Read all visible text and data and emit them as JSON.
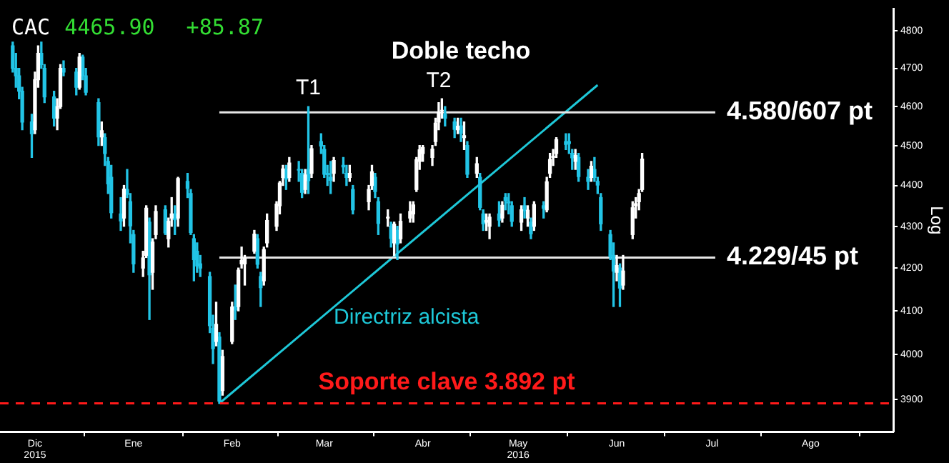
{
  "chart_data": {
    "type": "candlestick",
    "title": "Doble techo",
    "ylabel": "Log",
    "log": "y",
    "xlim": [
      "2015-12-04",
      "2016-09-10"
    ],
    "xticks": [
      {
        "value": "2015-12-15",
        "label": "Dic\n2015"
      },
      {
        "value": "2016-01-15",
        "label": "Ene"
      },
      {
        "value": "2016-02-15",
        "label": "Feb"
      },
      {
        "value": "2016-03-15",
        "label": "Mar"
      },
      {
        "value": "2016-04-15",
        "label": "Abr"
      },
      {
        "value": "2016-05-15",
        "label": "May\n2016"
      },
      {
        "value": "2016-06-15",
        "label": "Jun"
      },
      {
        "value": "2016-07-15",
        "label": "Jul"
      },
      {
        "value": "2016-08-15",
        "label": "Ago"
      }
    ],
    "ylim": [
      3830,
      4860
    ],
    "yticks": [
      3900,
      4000,
      4100,
      4200,
      4300,
      4400,
      4500,
      4600,
      4700,
      4800
    ],
    "series": [
      {
        "color": "#ffffff",
        "x": [
          "2015-12-15",
          "2015-12-16",
          "2015-12-22",
          "2015-12-23",
          "2015-12-29",
          "2016-01-05",
          "2016-01-12",
          "2016-01-18",
          "2016-01-19",
          "2016-01-21",
          "2016-01-22",
          "2016-01-26",
          "2016-01-27",
          "2016-01-29",
          "2016-02-10",
          "2016-02-12",
          "2016-02-15",
          "2016-02-17",
          "2016-02-18",
          "2016-02-19",
          "2016-02-22",
          "2016-02-25",
          "2016-02-26",
          "2016-02-29",
          "2016-03-01",
          "2016-03-02",
          "2016-03-04",
          "2016-03-09",
          "2016-03-11",
          "2016-03-18",
          "2016-03-23",
          "2016-03-29",
          "2016-03-30",
          "2016-04-04",
          "2016-04-06",
          "2016-04-08",
          "2016-04-11",
          "2016-04-12",
          "2016-04-13",
          "2016-04-14",
          "2016-04-15",
          "2016-04-18",
          "2016-04-19",
          "2016-04-20",
          "2016-04-21",
          "2016-04-26",
          "2016-04-28",
          "2016-05-02",
          "2016-05-05",
          "2016-05-06",
          "2016-05-10",
          "2016-05-16",
          "2016-05-18",
          "2016-05-20",
          "2016-05-24",
          "2016-05-25",
          "2016-05-26",
          "2016-05-27",
          "2016-06-02",
          "2016-06-07",
          "2016-06-15",
          "2016-06-17",
          "2016-06-20",
          "2016-06-21",
          "2016-06-22",
          "2016-06-23"
        ],
        "ohlc": [
          [
            4540,
            4690,
            4530,
            4670
          ],
          [
            4670,
            4760,
            4650,
            4740
          ],
          [
            4570,
            4620,
            4540,
            4600
          ],
          [
            4600,
            4710,
            4595,
            4700
          ],
          [
            4650,
            4740,
            4645,
            4730
          ],
          [
            4522,
            4560,
            4500,
            4538
          ],
          [
            4320,
            4400,
            4300,
            4391
          ],
          [
            4200,
            4240,
            4180,
            4224
          ],
          [
            4230,
            4350,
            4225,
            4344
          ],
          [
            4190,
            4270,
            4150,
            4262
          ],
          [
            4280,
            4350,
            4270,
            4336
          ],
          [
            4270,
            4320,
            4250,
            4312
          ],
          [
            4320,
            4370,
            4300,
            4330
          ],
          [
            4320,
            4420,
            4300,
            4417
          ],
          [
            4030,
            4120,
            4020,
            4069
          ],
          [
            3920,
            4010,
            3910,
            3996
          ],
          [
            4030,
            4120,
            4025,
            4109
          ],
          [
            4110,
            4200,
            4100,
            4195
          ],
          [
            4210,
            4250,
            4200,
            4218
          ],
          [
            4210,
            4230,
            4160,
            4223
          ],
          [
            4240,
            4290,
            4235,
            4281
          ],
          [
            4170,
            4250,
            4160,
            4244
          ],
          [
            4260,
            4330,
            4250,
            4314
          ],
          [
            4300,
            4360,
            4290,
            4354
          ],
          [
            4350,
            4410,
            4330,
            4406
          ],
          [
            4420,
            4450,
            4400,
            4441
          ],
          [
            4420,
            4470,
            4410,
            4456
          ],
          [
            4390,
            4440,
            4380,
            4426
          ],
          [
            4430,
            4500,
            4420,
            4492
          ],
          [
            4430,
            4470,
            4410,
            4462
          ],
          [
            4420,
            4450,
            4410,
            4430
          ],
          [
            4360,
            4400,
            4340,
            4390
          ],
          [
            4400,
            4450,
            4390,
            4434
          ],
          [
            4320,
            4340,
            4300,
            4322
          ],
          [
            4260,
            4310,
            4230,
            4305
          ],
          [
            4270,
            4330,
            4260,
            4312
          ],
          [
            4320,
            4360,
            4310,
            4336
          ],
          [
            4330,
            4360,
            4310,
            4352
          ],
          [
            4390,
            4470,
            4385,
            4464
          ],
          [
            4460,
            4500,
            4440,
            4489
          ],
          [
            4480,
            4500,
            4460,
            4495
          ],
          [
            4470,
            4500,
            4450,
            4491
          ],
          [
            4510,
            4570,
            4500,
            4557
          ],
          [
            4560,
            4610,
            4540,
            4585
          ],
          [
            4590,
            4620,
            4570,
            4590
          ],
          [
            4540,
            4570,
            4530,
            4549
          ],
          [
            4520,
            4560,
            4490,
            4525
          ],
          [
            4430,
            4470,
            4420,
            4454
          ],
          [
            4310,
            4330,
            4290,
            4314
          ],
          [
            4300,
            4330,
            4270,
            4322
          ],
          [
            4320,
            4360,
            4310,
            4351
          ],
          [
            4310,
            4350,
            4290,
            4340
          ],
          [
            4320,
            4350,
            4300,
            4339
          ],
          [
            4300,
            4360,
            4290,
            4353
          ],
          [
            4340,
            4420,
            4335,
            4409
          ],
          [
            4430,
            4480,
            4420,
            4465
          ],
          [
            4470,
            4490,
            4450,
            4473
          ],
          [
            4480,
            4520,
            4470,
            4515
          ],
          [
            4460,
            4490,
            4440,
            4475
          ],
          [
            4420,
            4460,
            4410,
            4448
          ],
          [
            4190,
            4230,
            4170,
            4206
          ],
          [
            4160,
            4230,
            4150,
            4193
          ],
          [
            4280,
            4360,
            4270,
            4345
          ],
          [
            4350,
            4370,
            4320,
            4355
          ],
          [
            4360,
            4390,
            4340,
            4380
          ],
          [
            4390,
            4480,
            4385,
            4466
          ]
        ]
      },
      {
        "color": "#22c4e6",
        "x": [
          "2015-12-08",
          "2015-12-09",
          "2015-12-10",
          "2015-12-11",
          "2015-12-14",
          "2015-12-17",
          "2015-12-18",
          "2015-12-21",
          "2015-12-24",
          "2015-12-28",
          "2015-12-30",
          "2015-12-31",
          "2016-01-04",
          "2016-01-06",
          "2016-01-07",
          "2016-01-08",
          "2016-01-11",
          "2016-01-13",
          "2016-01-14",
          "2016-01-15",
          "2016-01-20",
          "2016-01-25",
          "2016-01-28",
          "2016-02-01",
          "2016-02-02",
          "2016-02-03",
          "2016-02-04",
          "2016-02-05",
          "2016-02-08",
          "2016-02-09",
          "2016-02-11",
          "2016-02-16",
          "2016-02-23",
          "2016-02-24",
          "2016-03-03",
          "2016-03-07",
          "2016-03-08",
          "2016-03-10",
          "2016-03-14",
          "2016-03-15",
          "2016-03-16",
          "2016-03-17",
          "2016-03-21",
          "2016-03-22",
          "2016-03-24",
          "2016-03-31",
          "2016-04-01",
          "2016-04-05",
          "2016-04-07",
          "2016-04-22",
          "2016-04-25",
          "2016-04-27",
          "2016-04-29",
          "2016-05-03",
          "2016-05-04",
          "2016-05-09",
          "2016-05-11",
          "2016-05-12",
          "2016-05-13",
          "2016-05-17",
          "2016-05-19",
          "2016-05-23",
          "2016-05-30",
          "2016-05-31",
          "2016-06-01",
          "2016-06-03",
          "2016-06-06",
          "2016-06-08",
          "2016-06-09",
          "2016-06-10",
          "2016-06-13",
          "2016-06-14",
          "2016-06-16"
        ],
        "ohlc": [
          [
            4760,
            4770,
            4690,
            4700
          ],
          [
            4700,
            4740,
            4650,
            4680
          ],
          [
            4680,
            4700,
            4620,
            4640
          ],
          [
            4640,
            4650,
            4540,
            4560
          ],
          [
            4560,
            4580,
            4470,
            4530
          ],
          [
            4740,
            4770,
            4700,
            4710
          ],
          [
            4700,
            4710,
            4610,
            4625
          ],
          [
            4625,
            4640,
            4550,
            4570
          ],
          [
            4700,
            4720,
            4680,
            4690
          ],
          [
            4690,
            4700,
            4630,
            4650
          ],
          [
            4730,
            4735,
            4670,
            4680
          ],
          [
            4680,
            4700,
            4630,
            4637
          ],
          [
            4610,
            4620,
            4500,
            4522
          ],
          [
            4520,
            4530,
            4450,
            4480
          ],
          [
            4460,
            4470,
            4380,
            4404
          ],
          [
            4420,
            4450,
            4320,
            4333
          ],
          [
            4330,
            4370,
            4290,
            4313
          ],
          [
            4390,
            4440,
            4370,
            4378
          ],
          [
            4360,
            4380,
            4260,
            4301
          ],
          [
            4280,
            4290,
            4190,
            4210
          ],
          [
            4310,
            4320,
            4080,
            4184
          ],
          [
            4340,
            4350,
            4280,
            4284
          ],
          [
            4330,
            4350,
            4280,
            4316
          ],
          [
            4410,
            4430,
            4370,
            4393
          ],
          [
            4380,
            4390,
            4280,
            4285
          ],
          [
            4270,
            4280,
            4170,
            4220
          ],
          [
            4240,
            4260,
            4190,
            4205
          ],
          [
            4210,
            4230,
            4180,
            4200
          ],
          [
            4180,
            4190,
            4050,
            4066
          ],
          [
            4060,
            4090,
            3980,
            4014
          ],
          [
            4040,
            4050,
            3892,
            3897
          ],
          [
            4110,
            4160,
            4080,
            4102
          ],
          [
            4270,
            4280,
            4200,
            4209
          ],
          [
            4180,
            4190,
            4110,
            4154
          ],
          [
            4440,
            4450,
            4390,
            4416
          ],
          [
            4440,
            4460,
            4410,
            4438
          ],
          [
            4430,
            4440,
            4370,
            4383
          ],
          [
            4440,
            4600,
            4380,
            4412
          ],
          [
            4510,
            4530,
            4480,
            4499
          ],
          [
            4490,
            4500,
            4420,
            4428
          ],
          [
            4430,
            4450,
            4400,
            4427
          ],
          [
            4420,
            4460,
            4380,
            4413
          ],
          [
            4450,
            4470,
            4430,
            4446
          ],
          [
            4430,
            4450,
            4400,
            4420
          ],
          [
            4390,
            4400,
            4330,
            4340
          ],
          [
            4420,
            4430,
            4370,
            4385
          ],
          [
            4360,
            4370,
            4280,
            4307
          ],
          [
            4300,
            4310,
            4250,
            4271
          ],
          [
            4290,
            4300,
            4220,
            4257
          ],
          [
            4580,
            4600,
            4550,
            4570
          ],
          [
            4560,
            4570,
            4520,
            4541
          ],
          [
            4550,
            4570,
            4510,
            4531
          ],
          [
            4500,
            4510,
            4420,
            4428
          ],
          [
            4420,
            4430,
            4340,
            4346
          ],
          [
            4330,
            4340,
            4290,
            4306
          ],
          [
            4330,
            4360,
            4300,
            4315
          ],
          [
            4370,
            4380,
            4340,
            4363
          ],
          [
            4360,
            4380,
            4330,
            4357
          ],
          [
            4350,
            4360,
            4300,
            4312
          ],
          [
            4350,
            4370,
            4320,
            4338
          ],
          [
            4310,
            4320,
            4270,
            4282
          ],
          [
            4350,
            4360,
            4320,
            4344
          ],
          [
            4510,
            4530,
            4490,
            4503
          ],
          [
            4510,
            4530,
            4480,
            4505
          ],
          [
            4480,
            4490,
            4440,
            4469
          ],
          [
            4470,
            4480,
            4410,
            4422
          ],
          [
            4420,
            4440,
            4390,
            4410
          ],
          [
            4440,
            4470,
            4410,
            4420
          ],
          [
            4410,
            4420,
            4380,
            4401
          ],
          [
            4370,
            4380,
            4290,
            4306
          ],
          [
            4280,
            4290,
            4220,
            4227
          ],
          [
            4230,
            4260,
            4110,
            4193
          ],
          [
            4200,
            4210,
            4110,
            4153
          ]
        ]
      },
      {
        "type": "line",
        "color": "#e6e6e6",
        "x": [
          "2016-02-11",
          "2016-07-16"
        ],
        "values": [
          4585,
          4585
        ]
      },
      {
        "type": "line",
        "color": "#e6e6e6",
        "x": [
          "2016-02-11",
          "2016-07-16"
        ],
        "values": [
          4225,
          4225
        ]
      },
      {
        "type": "line",
        "color": "#1ec8d8",
        "x": [
          "2016-02-11",
          "2016-06-09"
        ],
        "values": [
          3892,
          4656
        ]
      }
    ],
    "ref_lines": [
      {
        "axis": "y",
        "value": 3892,
        "label": "Soporte clave 3.892 pt",
        "color": "#ff1a1a",
        "line_style": "dashed"
      }
    ],
    "annotations": [
      "CAC",
      "4465.90",
      "+85.87",
      {
        "text": "T1",
        "x": "2016-03-10",
        "y": 4600
      },
      {
        "text": "T2",
        "x": "2016-04-20",
        "y": 4620
      },
      {
        "text": "4.580/607 pt",
        "x": "2016-07-16",
        "y": 4585
      },
      {
        "text": "4.229/45 pt",
        "x": "2016-07-16",
        "y": 4225
      },
      "Directriz alcista"
    ]
  }
}
